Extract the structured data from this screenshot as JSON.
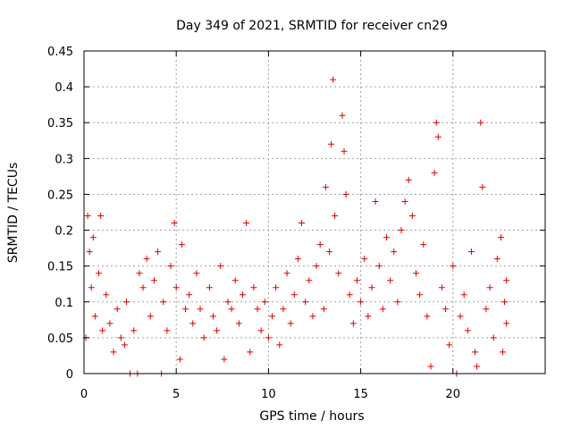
{
  "chart_data": {
    "type": "scatter",
    "title": "Day 349 of 2021, SRMTID for receiver cn29",
    "xlabel": "GPS time / hours",
    "ylabel": "SRMTID / TECUs",
    "xlim": [
      0,
      25
    ],
    "ylim": [
      0,
      0.45
    ],
    "xticks": [
      0,
      5,
      10,
      15,
      20
    ],
    "yticks": [
      0,
      0.05,
      0.1,
      0.15,
      0.2,
      0.25,
      0.3,
      0.35,
      0.4,
      0.45
    ],
    "xtick_labels": [
      "0",
      "5",
      "10",
      "15",
      "20"
    ],
    "ytick_labels": [
      "0",
      "0.05",
      "0.1",
      "0.15",
      "0.2",
      "0.25",
      "0.3",
      "0.35",
      "0.4",
      "0.45"
    ],
    "grid": true,
    "marker": "+",
    "color": "#dd0000",
    "series": [
      {
        "name": "SRMTID",
        "points": [
          [
            0.1,
            0.05
          ],
          [
            0.2,
            0.22
          ],
          [
            0.3,
            0.17
          ],
          [
            0.4,
            0.12
          ],
          [
            0.5,
            0.19
          ],
          [
            0.6,
            0.08
          ],
          [
            0.8,
            0.14
          ],
          [
            0.9,
            0.22
          ],
          [
            1.0,
            0.06
          ],
          [
            1.2,
            0.11
          ],
          [
            1.4,
            0.07
          ],
          [
            1.6,
            0.03
          ],
          [
            1.8,
            0.09
          ],
          [
            2.0,
            0.05
          ],
          [
            2.2,
            0.04
          ],
          [
            2.3,
            0.1
          ],
          [
            2.5,
            0.0
          ],
          [
            2.7,
            0.06
          ],
          [
            2.9,
            0.0
          ],
          [
            3.0,
            0.14
          ],
          [
            3.2,
            0.12
          ],
          [
            3.4,
            0.16
          ],
          [
            3.6,
            0.08
          ],
          [
            3.8,
            0.13
          ],
          [
            4.0,
            0.17
          ],
          [
            4.2,
            0.0
          ],
          [
            4.3,
            0.1
          ],
          [
            4.5,
            0.06
          ],
          [
            4.7,
            0.15
          ],
          [
            4.9,
            0.21
          ],
          [
            5.0,
            0.12
          ],
          [
            5.2,
            0.02
          ],
          [
            5.3,
            0.18
          ],
          [
            5.5,
            0.09
          ],
          [
            5.7,
            0.11
          ],
          [
            5.9,
            0.07
          ],
          [
            6.1,
            0.14
          ],
          [
            6.3,
            0.09
          ],
          [
            6.5,
            0.05
          ],
          [
            6.8,
            0.12
          ],
          [
            7.0,
            0.08
          ],
          [
            7.2,
            0.06
          ],
          [
            7.4,
            0.15
          ],
          [
            7.6,
            0.02
          ],
          [
            7.8,
            0.1
          ],
          [
            8.0,
            0.09
          ],
          [
            8.2,
            0.13
          ],
          [
            8.4,
            0.07
          ],
          [
            8.6,
            0.11
          ],
          [
            8.8,
            0.21
          ],
          [
            9.0,
            0.03
          ],
          [
            9.2,
            0.12
          ],
          [
            9.4,
            0.09
          ],
          [
            9.6,
            0.06
          ],
          [
            9.8,
            0.1
          ],
          [
            10.0,
            0.05
          ],
          [
            10.2,
            0.08
          ],
          [
            10.4,
            0.12
          ],
          [
            10.6,
            0.04
          ],
          [
            10.8,
            0.09
          ],
          [
            11.0,
            0.14
          ],
          [
            11.2,
            0.07
          ],
          [
            11.4,
            0.11
          ],
          [
            11.6,
            0.16
          ],
          [
            11.8,
            0.21
          ],
          [
            12.0,
            0.1
          ],
          [
            12.2,
            0.13
          ],
          [
            12.4,
            0.08
          ],
          [
            12.6,
            0.15
          ],
          [
            12.8,
            0.18
          ],
          [
            13.0,
            0.09
          ],
          [
            13.1,
            0.26
          ],
          [
            13.3,
            0.17
          ],
          [
            13.4,
            0.32
          ],
          [
            13.5,
            0.41
          ],
          [
            13.6,
            0.22
          ],
          [
            13.8,
            0.14
          ],
          [
            14.0,
            0.36
          ],
          [
            14.1,
            0.31
          ],
          [
            14.2,
            0.25
          ],
          [
            14.4,
            0.11
          ],
          [
            14.6,
            0.07
          ],
          [
            14.8,
            0.13
          ],
          [
            15.0,
            0.1
          ],
          [
            15.2,
            0.16
          ],
          [
            15.4,
            0.08
          ],
          [
            15.6,
            0.12
          ],
          [
            15.8,
            0.24
          ],
          [
            16.0,
            0.15
          ],
          [
            16.2,
            0.09
          ],
          [
            16.4,
            0.19
          ],
          [
            16.6,
            0.13
          ],
          [
            16.8,
            0.17
          ],
          [
            17.0,
            0.1
          ],
          [
            17.2,
            0.2
          ],
          [
            17.4,
            0.24
          ],
          [
            17.6,
            0.27
          ],
          [
            17.8,
            0.22
          ],
          [
            18.0,
            0.14
          ],
          [
            18.2,
            0.11
          ],
          [
            18.4,
            0.18
          ],
          [
            18.6,
            0.08
          ],
          [
            18.8,
            0.01
          ],
          [
            19.0,
            0.28
          ],
          [
            19.1,
            0.35
          ],
          [
            19.2,
            0.33
          ],
          [
            19.4,
            0.12
          ],
          [
            19.6,
            0.09
          ],
          [
            19.8,
            0.04
          ],
          [
            20.0,
            0.15
          ],
          [
            20.2,
            0.0
          ],
          [
            20.4,
            0.08
          ],
          [
            20.6,
            0.11
          ],
          [
            20.8,
            0.06
          ],
          [
            21.0,
            0.17
          ],
          [
            21.2,
            0.03
          ],
          [
            21.3,
            0.01
          ],
          [
            21.5,
            0.35
          ],
          [
            21.6,
            0.26
          ],
          [
            21.8,
            0.09
          ],
          [
            22.0,
            0.12
          ],
          [
            22.2,
            0.05
          ],
          [
            22.4,
            0.16
          ],
          [
            22.6,
            0.19
          ],
          [
            22.7,
            0.03
          ],
          [
            22.8,
            0.1
          ],
          [
            22.9,
            0.07
          ],
          [
            22.9,
            0.13
          ]
        ]
      }
    ]
  }
}
